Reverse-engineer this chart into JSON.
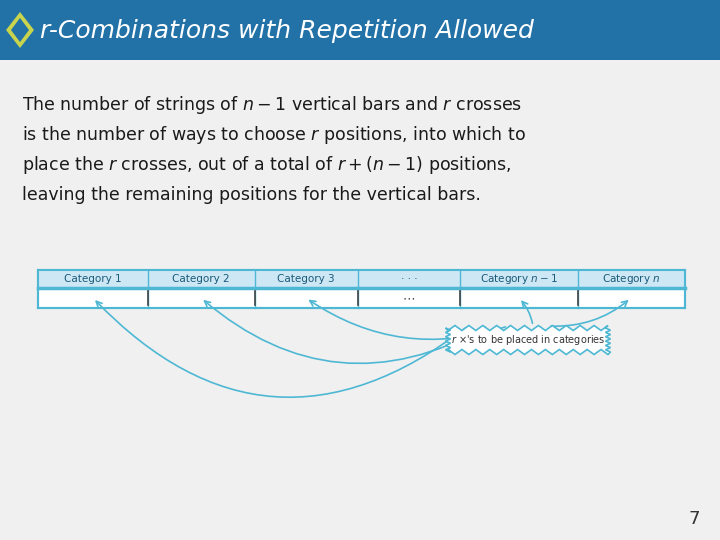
{
  "title": "r-Combinations with Repetition Allowed",
  "title_bg": "#2272a8",
  "title_fg": "#ffffff",
  "diamond_outer": "#c8d44e",
  "diamond_inner": "#2272a8",
  "body_bg": "#f0f0f0",
  "text_color": "#1a1a1a",
  "body_text_line1": "The number of strings of $n-1$ vertical bars and $r$ crosses",
  "body_text_line2": "is the number of ways to choose $r$ positions, into which to",
  "body_text_line3": "place the $r$ crosses, out of a total of $r+(n-1)$ positions,",
  "body_text_line4": "leaving the remaining positions for the vertical bars.",
  "page_number": "7",
  "table_categories": [
    "Category 1",
    "Category 2",
    "Category 3",
    "· · ·",
    "Category n – 1",
    "Category n"
  ],
  "arrow_color": "#4eb8d4",
  "table_border": "#4eb8d4",
  "cloud_text": "r ×'s to be placed in categories"
}
